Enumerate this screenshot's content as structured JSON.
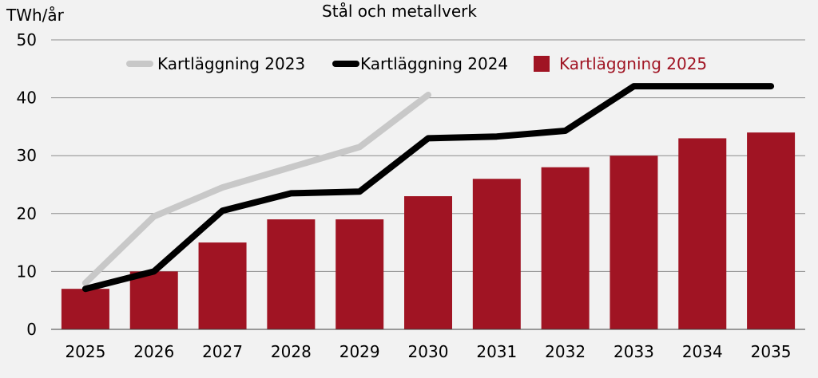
{
  "chart_data": {
    "type": "bar",
    "title": "Stål och metallverk",
    "ylabel": "TWh/år",
    "xlabel": "",
    "ylim": [
      0,
      50
    ],
    "yticks": [
      0,
      10,
      20,
      30,
      40,
      50
    ],
    "grid": true,
    "legend_position": "top",
    "categories": [
      "2025",
      "2026",
      "2027",
      "2028",
      "2029",
      "2030",
      "2031",
      "2032",
      "2033",
      "2034",
      "2035"
    ],
    "series": [
      {
        "name": "Kartläggning 2023",
        "type": "line",
        "color": "#c8c8c8",
        "values": [
          8,
          19.5,
          24.5,
          28,
          31.5,
          40.5,
          null,
          null,
          null,
          null,
          null
        ]
      },
      {
        "name": "Kartläggning 2024",
        "type": "line",
        "color": "#000000",
        "values": [
          7,
          10,
          20.5,
          23.5,
          23.8,
          33,
          33.3,
          34.3,
          42,
          42,
          42
        ]
      },
      {
        "name": "Kartläggning 2025",
        "type": "bar",
        "color": "#a01423",
        "values": [
          7,
          10,
          15,
          19,
          19,
          23,
          26,
          28,
          30,
          33,
          34
        ]
      }
    ]
  }
}
